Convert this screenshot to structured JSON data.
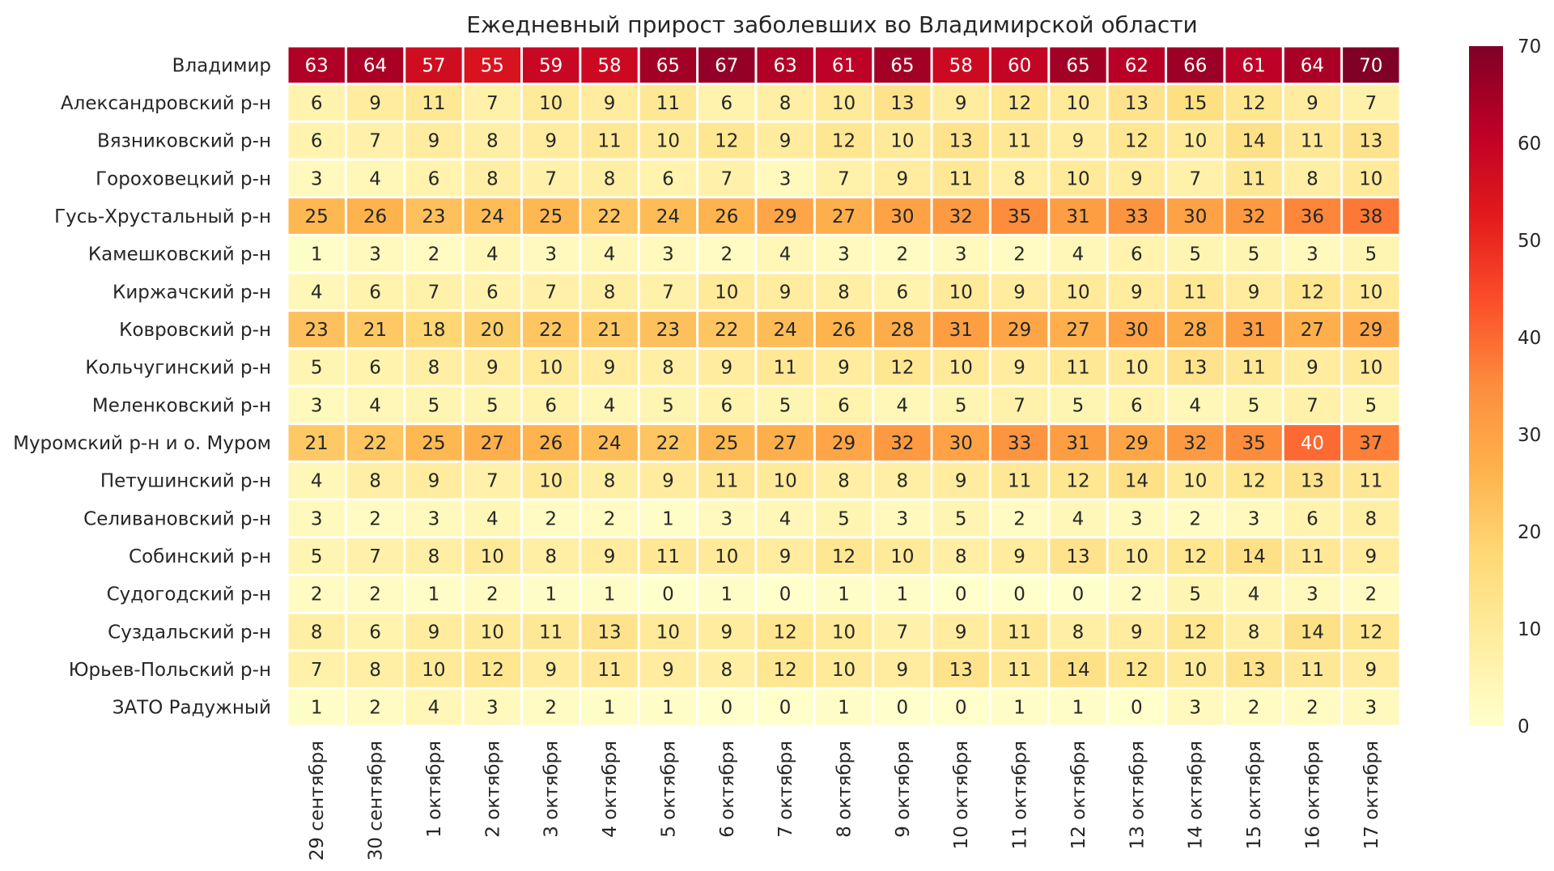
{
  "chart_data": {
    "type": "heatmap",
    "title": "Ежедневный прирост заболевших во Владимирской области",
    "rows": [
      "Владимир",
      "Александровский р-н",
      "Вязниковский р-н",
      "Гороховецкий р-н",
      "Гусь-Хрустальный р-н",
      "Камешковский р-н",
      "Киржачский р-н",
      "Ковровский р-н",
      "Кольчугинский р-н",
      "Меленковский р-н",
      "Муромский р-н и о. Муром",
      "Петушинский р-н",
      "Селивановский р-н",
      "Собинский р-н",
      "Судогодский р-н",
      "Суздальский р-н",
      "Юрьев-Польский р-н",
      "ЗАТО Радужный"
    ],
    "columns": [
      "29 сентября",
      "30 сентября",
      "1 октября",
      "2 октября",
      "3 октября",
      "4 октября",
      "5 октября",
      "6 октября",
      "7 октября",
      "8 октября",
      "9 октября",
      "10 октября",
      "11 октября",
      "12 октября",
      "13 октября",
      "14 октября",
      "15 октября",
      "16 октября",
      "17 октября"
    ],
    "values": [
      [
        63,
        64,
        57,
        55,
        59,
        58,
        65,
        67,
        63,
        61,
        65,
        58,
        60,
        65,
        62,
        66,
        61,
        64,
        70
      ],
      [
        6,
        9,
        11,
        7,
        10,
        9,
        11,
        6,
        8,
        10,
        13,
        9,
        12,
        10,
        13,
        15,
        12,
        9,
        7
      ],
      [
        6,
        7,
        9,
        8,
        9,
        11,
        10,
        12,
        9,
        12,
        10,
        13,
        11,
        9,
        12,
        10,
        14,
        11,
        13
      ],
      [
        3,
        4,
        6,
        8,
        7,
        8,
        6,
        7,
        3,
        7,
        9,
        11,
        8,
        10,
        9,
        7,
        11,
        8,
        10
      ],
      [
        25,
        26,
        23,
        24,
        25,
        22,
        24,
        26,
        29,
        27,
        30,
        32,
        35,
        31,
        33,
        30,
        32,
        36,
        38
      ],
      [
        1,
        3,
        2,
        4,
        3,
        4,
        3,
        2,
        4,
        3,
        2,
        3,
        2,
        4,
        6,
        5,
        5,
        3,
        5
      ],
      [
        4,
        6,
        7,
        6,
        7,
        8,
        7,
        10,
        9,
        8,
        6,
        10,
        9,
        10,
        9,
        11,
        9,
        12,
        10
      ],
      [
        23,
        21,
        18,
        20,
        22,
        21,
        23,
        22,
        24,
        26,
        28,
        31,
        29,
        27,
        30,
        28,
        31,
        27,
        29
      ],
      [
        5,
        6,
        8,
        9,
        10,
        9,
        8,
        9,
        11,
        9,
        12,
        10,
        9,
        11,
        10,
        13,
        11,
        9,
        10
      ],
      [
        3,
        4,
        5,
        5,
        6,
        4,
        5,
        6,
        5,
        6,
        4,
        5,
        7,
        5,
        6,
        4,
        5,
        7,
        5
      ],
      [
        21,
        22,
        25,
        27,
        26,
        24,
        22,
        25,
        27,
        29,
        32,
        30,
        33,
        31,
        29,
        32,
        35,
        40,
        37
      ],
      [
        4,
        8,
        9,
        7,
        10,
        8,
        9,
        11,
        10,
        8,
        8,
        9,
        11,
        12,
        14,
        10,
        12,
        13,
        11
      ],
      [
        3,
        2,
        3,
        4,
        2,
        2,
        1,
        3,
        4,
        5,
        3,
        5,
        2,
        4,
        3,
        2,
        3,
        6,
        8
      ],
      [
        5,
        7,
        8,
        10,
        8,
        9,
        11,
        10,
        9,
        12,
        10,
        8,
        9,
        13,
        10,
        12,
        14,
        11,
        9
      ],
      [
        2,
        2,
        1,
        2,
        1,
        1,
        0,
        1,
        0,
        1,
        1,
        0,
        0,
        0,
        2,
        5,
        4,
        3,
        2
      ],
      [
        8,
        6,
        9,
        10,
        11,
        13,
        10,
        9,
        12,
        10,
        7,
        9,
        11,
        8,
        9,
        12,
        8,
        14,
        12
      ],
      [
        7,
        8,
        10,
        12,
        9,
        11,
        9,
        8,
        12,
        10,
        9,
        13,
        11,
        14,
        12,
        10,
        13,
        11,
        9
      ],
      [
        1,
        2,
        4,
        3,
        2,
        1,
        1,
        0,
        0,
        1,
        0,
        0,
        1,
        1,
        0,
        3,
        2,
        2,
        3
      ]
    ],
    "colorbar": {
      "min": 0,
      "max": 70,
      "ticks": [
        0,
        10,
        20,
        30,
        40,
        50,
        60,
        70
      ]
    },
    "colormap": [
      "#ffffcc",
      "#ffeda0",
      "#fed976",
      "#feb24c",
      "#fd8d3c",
      "#fc4e2a",
      "#e31a1c",
      "#bd0026",
      "#800026"
    ],
    "grid": false
  }
}
